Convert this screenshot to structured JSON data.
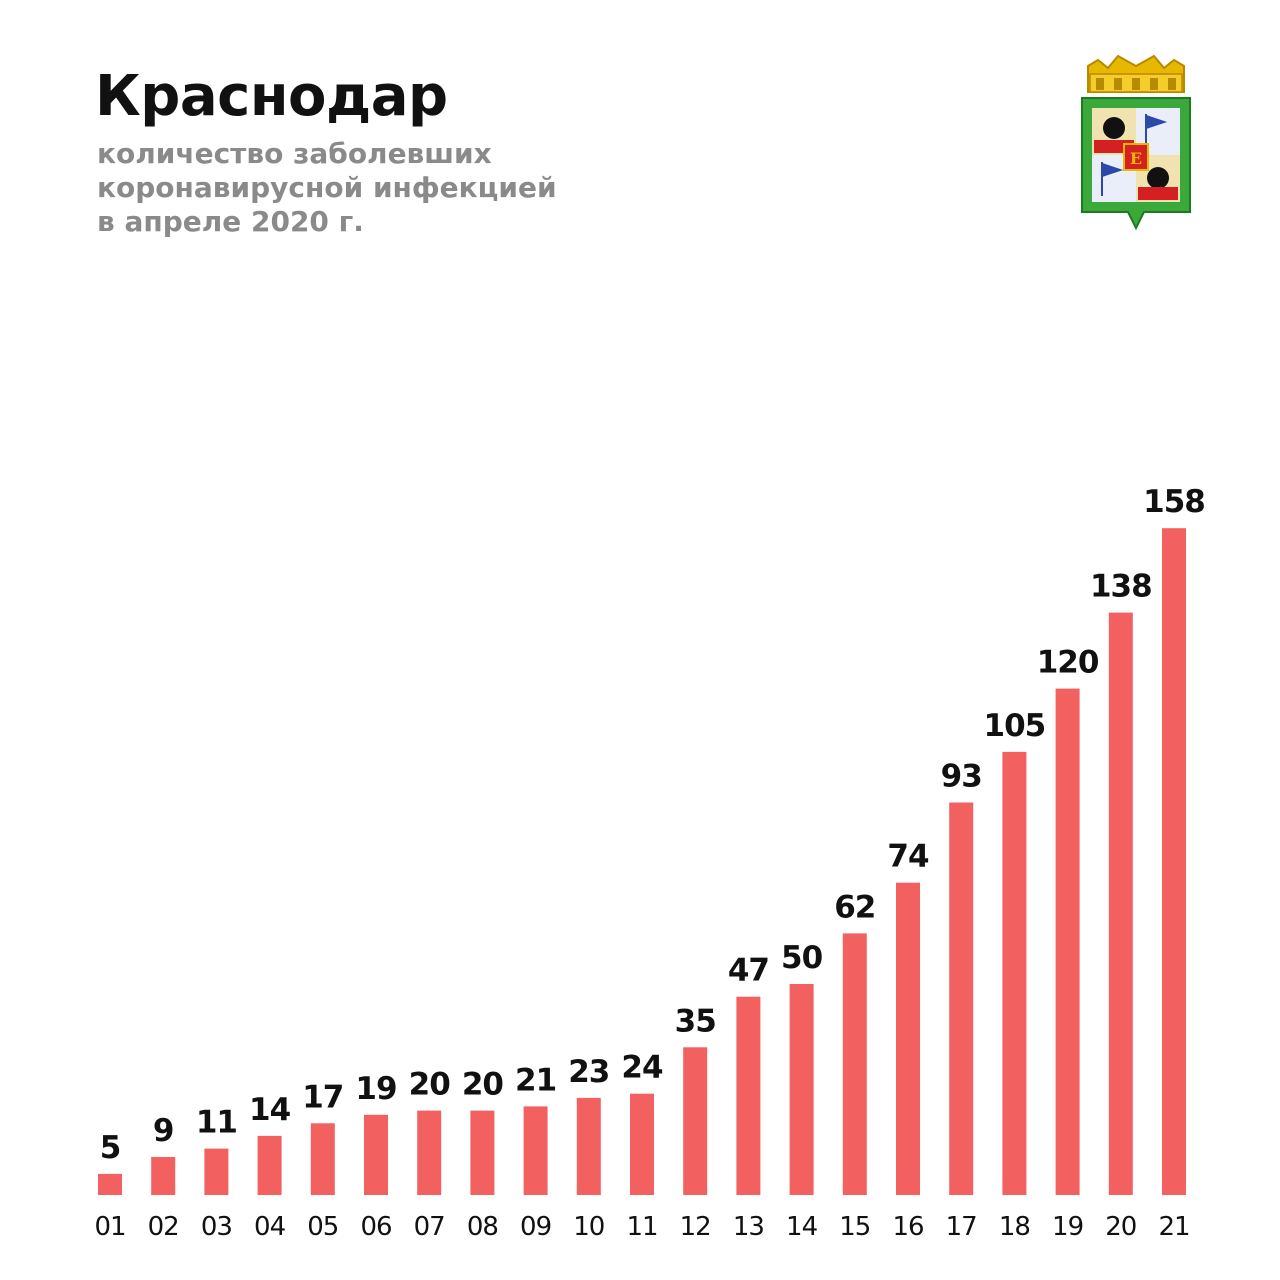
{
  "header": {
    "title": "Краснодар",
    "subtitle_lines": [
      "количество заболевших",
      "коронавирусной инфекцией",
      "в апреле 2020 г."
    ]
  },
  "emblem": {
    "icon": "krasnodar-coat-of-arms-icon"
  },
  "colors": {
    "bar": "#f26060",
    "title": "#111111",
    "subtitle": "#8a8a8a"
  },
  "chart_data": {
    "type": "bar",
    "title": "Краснодар",
    "subtitle": "количество заболевших коронавирусной инфекцией в апреле 2020 г.",
    "xlabel": "",
    "ylabel": "",
    "categories": [
      "01",
      "02",
      "03",
      "04",
      "05",
      "06",
      "07",
      "08",
      "09",
      "10",
      "11",
      "12",
      "13",
      "14",
      "15",
      "16",
      "17",
      "18",
      "19",
      "20",
      "21"
    ],
    "values": [
      5,
      9,
      11,
      14,
      17,
      19,
      20,
      20,
      21,
      23,
      24,
      35,
      47,
      50,
      62,
      74,
      93,
      105,
      120,
      138,
      158
    ],
    "ylim": [
      0,
      160
    ],
    "grid": false,
    "data_labels": true,
    "legend": "none"
  }
}
